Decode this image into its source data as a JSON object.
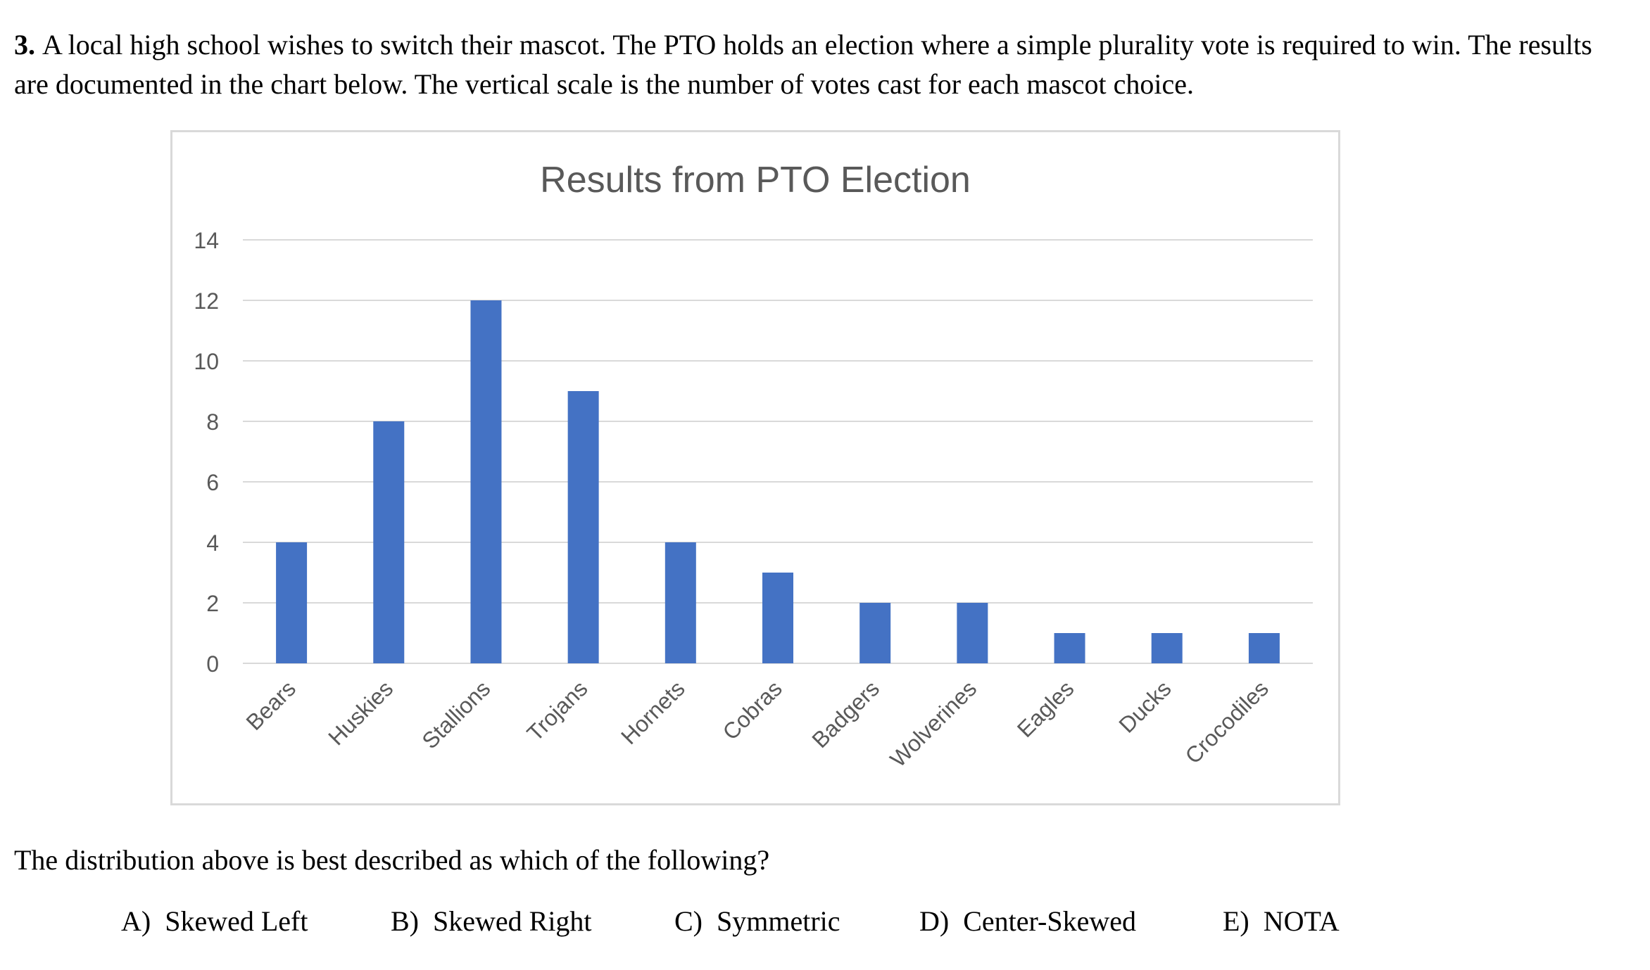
{
  "question": {
    "number": "3.",
    "text": "A local high school wishes to switch their mascot. The PTO holds an election where a simple plurality vote is required to win. The results are documented in the chart below. The vertical scale is the number of votes cast for each mascot choice."
  },
  "chart_data": {
    "type": "bar",
    "title": "Results from PTO Election",
    "categories": [
      "Bears",
      "Huskies",
      "Stallions",
      "Trojans",
      "Hornets",
      "Cobras",
      "Badgers",
      "Wolverines",
      "Eagles",
      "Ducks",
      "Crocodiles"
    ],
    "values": [
      4,
      8,
      12,
      9,
      4,
      3,
      2,
      2,
      1,
      1,
      1
    ],
    "ylim": [
      0,
      14
    ],
    "yticks": [
      "0",
      "2",
      "4",
      "6",
      "8",
      "10",
      "12",
      "14"
    ],
    "xlabel": "",
    "ylabel": "",
    "grid": true,
    "bar_color": "#4472c4",
    "grid_color": "#d9d9d9",
    "tick_color": "#595959"
  },
  "prompt": "The distribution above is best described as which of the following?",
  "choices": [
    {
      "label": "A)",
      "text": "Skewed Left"
    },
    {
      "label": "B)",
      "text": "Skewed Right"
    },
    {
      "label": "C)",
      "text": "Symmetric"
    },
    {
      "label": "D)",
      "text": "Center-Skewed"
    },
    {
      "label": "E)",
      "text": "NOTA"
    }
  ]
}
